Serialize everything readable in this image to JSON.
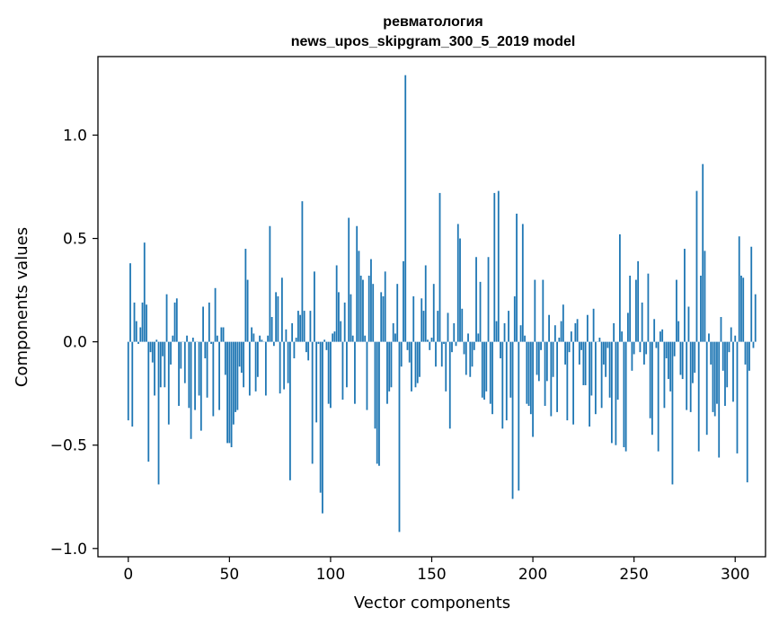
{
  "chart_data": {
    "type": "bar",
    "title": "ревматология",
    "subtitle": "news_upos_skipgram_300_5_2019 model",
    "xlabel": "Vector components",
    "ylabel": "Components values",
    "xlim": [
      -15,
      315
    ],
    "ylim": [
      -1.04,
      1.38
    ],
    "xticks": [
      0,
      50,
      100,
      150,
      200,
      250,
      300
    ],
    "xtick_labels": [
      "0",
      "50",
      "100",
      "150",
      "200",
      "250",
      "300"
    ],
    "yticks": [
      -1.0,
      -0.5,
      0.0,
      0.5,
      1.0
    ],
    "ytick_labels": [
      "−1.0",
      "−0.5",
      "0.0",
      "0.5",
      "1.0"
    ],
    "grid": false,
    "bar_color": "#1f77b4",
    "series": [
      {
        "values": [
          -0.38,
          0.38,
          -0.41,
          0.19,
          0.1,
          -0.01,
          0.07,
          0.19,
          0.48,
          0.18,
          -0.58,
          -0.05,
          -0.1,
          -0.26,
          0.01,
          -0.69,
          -0.22,
          -0.07,
          -0.22,
          0.23,
          -0.4,
          -0.11,
          0.03,
          0.19,
          0.21,
          -0.31,
          -0.13,
          0.0,
          -0.2,
          0.03,
          -0.32,
          -0.47,
          0.02,
          -0.33,
          0.0,
          -0.26,
          -0.43,
          0.17,
          -0.08,
          -0.27,
          0.19,
          -0.01,
          -0.36,
          0.26,
          0.03,
          -0.33,
          0.07,
          0.07,
          -0.16,
          -0.49,
          -0.49,
          -0.51,
          -0.4,
          -0.34,
          -0.33,
          -0.12,
          -0.15,
          -0.22,
          0.45,
          0.3,
          -0.26,
          0.07,
          0.04,
          -0.24,
          -0.17,
          0.03,
          0.01,
          0.0,
          -0.26,
          0.03,
          0.56,
          0.12,
          -0.02,
          0.24,
          0.22,
          -0.25,
          0.31,
          -0.23,
          0.06,
          -0.2,
          -0.67,
          0.09,
          -0.08,
          0.02,
          0.15,
          0.13,
          0.68,
          0.15,
          -0.05,
          -0.09,
          0.15,
          -0.59,
          0.34,
          -0.39,
          -0.01,
          -0.73,
          -0.83,
          0.01,
          -0.04,
          -0.3,
          -0.32,
          0.04,
          0.05,
          0.37,
          0.24,
          0.1,
          -0.28,
          0.19,
          -0.22,
          0.6,
          0.23,
          0.03,
          -0.3,
          0.56,
          0.44,
          0.32,
          0.3,
          0.03,
          -0.33,
          0.32,
          0.4,
          0.28,
          -0.42,
          -0.59,
          -0.6,
          0.24,
          0.22,
          0.34,
          -0.3,
          -0.24,
          -0.22,
          0.09,
          0.04,
          0.28,
          -0.92,
          -0.12,
          0.39,
          1.29,
          -0.04,
          -0.1,
          -0.24,
          0.22,
          -0.22,
          -0.2,
          -0.17,
          0.21,
          0.15,
          0.37,
          0.01,
          -0.04,
          0.02,
          0.28,
          -0.12,
          0.15,
          0.72,
          -0.12,
          -0.01,
          -0.24,
          0.14,
          -0.42,
          -0.05,
          0.09,
          -0.02,
          0.57,
          0.5,
          0.16,
          -0.06,
          -0.16,
          0.04,
          -0.17,
          -0.12,
          -0.04,
          0.41,
          0.04,
          0.29,
          -0.27,
          -0.28,
          -0.24,
          0.41,
          -0.3,
          -0.35,
          0.72,
          0.1,
          0.73,
          -0.08,
          -0.42,
          0.09,
          -0.38,
          0.15,
          -0.27,
          -0.76,
          0.22,
          0.62,
          -0.72,
          0.08,
          0.57,
          0.03,
          -0.3,
          -0.31,
          -0.35,
          -0.46,
          0.3,
          -0.16,
          -0.19,
          -0.04,
          0.3,
          -0.31,
          -0.19,
          0.13,
          -0.36,
          -0.17,
          0.08,
          -0.34,
          0.02,
          0.1,
          0.18,
          -0.11,
          -0.38,
          -0.05,
          0.05,
          -0.4,
          0.09,
          0.11,
          -0.11,
          -0.04,
          -0.21,
          -0.21,
          0.13,
          -0.41,
          -0.26,
          0.16,
          -0.35,
          0.0,
          0.02,
          -0.32,
          -0.11,
          -0.17,
          -0.03,
          -0.27,
          -0.49,
          0.09,
          -0.5,
          -0.28,
          0.52,
          0.05,
          -0.51,
          -0.53,
          0.14,
          0.32,
          -0.14,
          -0.06,
          0.3,
          0.39,
          -0.05,
          0.19,
          -0.11,
          -0.06,
          0.33,
          -0.37,
          -0.45,
          0.11,
          -0.03,
          -0.53,
          0.05,
          0.06,
          -0.32,
          -0.08,
          -0.18,
          -0.24,
          -0.69,
          -0.07,
          0.3,
          0.1,
          -0.16,
          -0.18,
          0.45,
          -0.33,
          0.17,
          -0.34,
          -0.2,
          -0.15,
          0.73,
          -0.53,
          0.32,
          0.86,
          0.44,
          -0.45,
          0.04,
          -0.11,
          -0.34,
          -0.36,
          -0.3,
          -0.56,
          0.12,
          -0.14,
          -0.31,
          -0.22,
          -0.05,
          0.07,
          -0.29,
          0.03,
          -0.54,
          0.51,
          0.32,
          0.31,
          -0.11,
          -0.68,
          -0.14,
          0.46,
          -0.03,
          0.23
        ]
      }
    ]
  }
}
